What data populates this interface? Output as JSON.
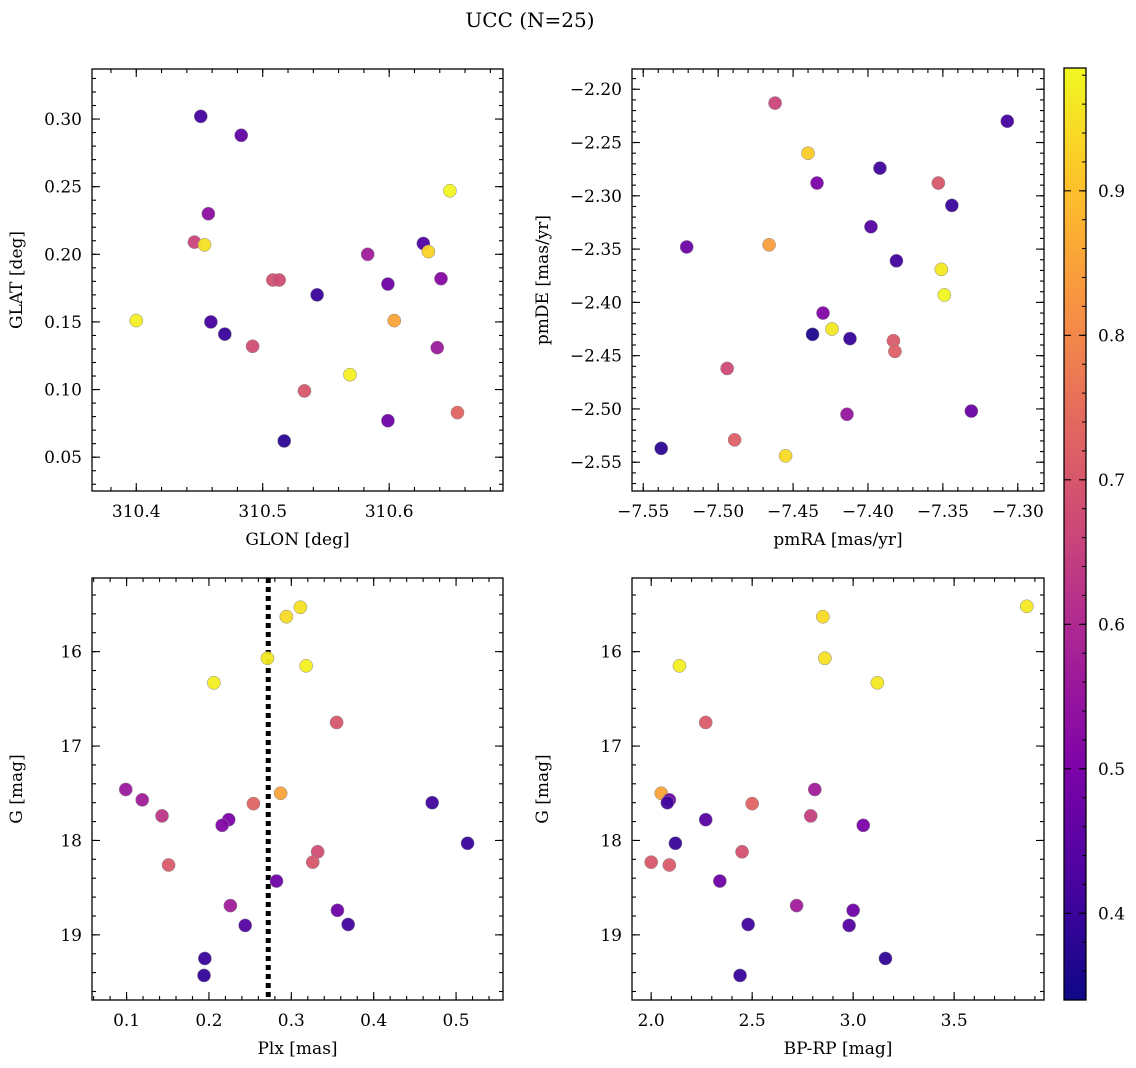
{
  "figure": {
    "title": "UCC (N=25)"
  },
  "colorbar": {
    "range": [
      0.34,
      0.985
    ],
    "ticks": [
      0.4,
      0.5,
      0.6,
      0.7,
      0.8,
      0.9
    ],
    "tick_labels": [
      "0.4",
      "0.5",
      "0.6",
      "0.7",
      "0.8",
      "0.9"
    ],
    "colormap": "plasma"
  },
  "chart_data": [
    {
      "type": "scatter",
      "title": "",
      "xlabel": "GLON [deg]",
      "ylabel": "GLAT [deg]",
      "xlim": [
        310.365,
        310.69
      ],
      "ylim": [
        0.025,
        0.337
      ],
      "xticks": [
        310.4,
        310.5,
        310.6
      ],
      "xtick_labels": [
        "310.4",
        "310.5",
        "310.6"
      ],
      "yticks": [
        0.05,
        0.1,
        0.15,
        0.2,
        0.25,
        0.3
      ],
      "ytick_labels": [
        "0.05",
        "0.10",
        "0.15",
        "0.20",
        "0.25",
        "0.30"
      ],
      "grid": false,
      "points": [
        {
          "x": 310.451,
          "y": 0.302,
          "c": 0.42
        },
        {
          "x": 310.483,
          "y": 0.288,
          "c": 0.46
        },
        {
          "x": 310.457,
          "y": 0.23,
          "c": 0.53
        },
        {
          "x": 310.446,
          "y": 0.209,
          "c": 0.66
        },
        {
          "x": 310.454,
          "y": 0.207,
          "c": 0.95
        },
        {
          "x": 310.4,
          "y": 0.151,
          "c": 0.97
        },
        {
          "x": 310.459,
          "y": 0.15,
          "c": 0.42
        },
        {
          "x": 310.47,
          "y": 0.141,
          "c": 0.4
        },
        {
          "x": 310.492,
          "y": 0.132,
          "c": 0.68
        },
        {
          "x": 310.508,
          "y": 0.181,
          "c": 0.69
        },
        {
          "x": 310.513,
          "y": 0.181,
          "c": 0.68
        },
        {
          "x": 310.543,
          "y": 0.17,
          "c": 0.4
        },
        {
          "x": 310.533,
          "y": 0.099,
          "c": 0.7
        },
        {
          "x": 310.517,
          "y": 0.062,
          "c": 0.38
        },
        {
          "x": 310.569,
          "y": 0.111,
          "c": 0.97
        },
        {
          "x": 310.583,
          "y": 0.2,
          "c": 0.57
        },
        {
          "x": 310.599,
          "y": 0.178,
          "c": 0.48
        },
        {
          "x": 310.599,
          "y": 0.077,
          "c": 0.48
        },
        {
          "x": 310.604,
          "y": 0.151,
          "c": 0.85
        },
        {
          "x": 310.627,
          "y": 0.208,
          "c": 0.43
        },
        {
          "x": 310.631,
          "y": 0.202,
          "c": 0.93
        },
        {
          "x": 310.648,
          "y": 0.247,
          "c": 0.98
        },
        {
          "x": 310.641,
          "y": 0.182,
          "c": 0.52
        },
        {
          "x": 310.638,
          "y": 0.131,
          "c": 0.56
        },
        {
          "x": 310.654,
          "y": 0.083,
          "c": 0.73
        }
      ]
    },
    {
      "type": "scatter",
      "title": "",
      "xlabel": "pmRA [mas/yr]",
      "ylabel": "pmDE [mas/yr]",
      "xlim": [
        -7.5575,
        -7.2825
      ],
      "ylim": [
        -2.577,
        -2.181
      ],
      "xticks": [
        -7.55,
        -7.5,
        -7.45,
        -7.4,
        -7.35,
        -7.3
      ],
      "xtick_labels": [
        "−7.55",
        "−7.50",
        "−7.45",
        "−7.40",
        "−7.35",
        "−7.30"
      ],
      "yticks": [
        -2.55,
        -2.5,
        -2.45,
        -2.4,
        -2.35,
        -2.3,
        -2.25,
        -2.2
      ],
      "ytick_labels": [
        "−2.55",
        "−2.50",
        "−2.45",
        "−2.40",
        "−2.35",
        "−2.30",
        "−2.25",
        "−2.20"
      ],
      "grid": false,
      "points": [
        {
          "x": -7.462,
          "y": -2.213,
          "c": 0.66
        },
        {
          "x": -7.44,
          "y": -2.26,
          "c": 0.92
        },
        {
          "x": -7.434,
          "y": -2.288,
          "c": 0.5
        },
        {
          "x": -7.392,
          "y": -2.274,
          "c": 0.41
        },
        {
          "x": -7.307,
          "y": -2.23,
          "c": 0.42
        },
        {
          "x": -7.353,
          "y": -2.288,
          "c": 0.7
        },
        {
          "x": -7.344,
          "y": -2.309,
          "c": 0.4
        },
        {
          "x": -7.398,
          "y": -2.329,
          "c": 0.44
        },
        {
          "x": -7.521,
          "y": -2.348,
          "c": 0.48
        },
        {
          "x": -7.466,
          "y": -2.346,
          "c": 0.84
        },
        {
          "x": -7.381,
          "y": -2.361,
          "c": 0.41
        },
        {
          "x": -7.351,
          "y": -2.369,
          "c": 0.96
        },
        {
          "x": -7.349,
          "y": -2.393,
          "c": 0.98
        },
        {
          "x": -7.43,
          "y": -2.41,
          "c": 0.51
        },
        {
          "x": -7.424,
          "y": -2.425,
          "c": 0.96
        },
        {
          "x": -7.437,
          "y": -2.43,
          "c": 0.36
        },
        {
          "x": -7.412,
          "y": -2.434,
          "c": 0.4
        },
        {
          "x": -7.383,
          "y": -2.436,
          "c": 0.71
        },
        {
          "x": -7.382,
          "y": -2.446,
          "c": 0.72
        },
        {
          "x": -7.494,
          "y": -2.462,
          "c": 0.67
        },
        {
          "x": -7.414,
          "y": -2.505,
          "c": 0.55
        },
        {
          "x": -7.331,
          "y": -2.502,
          "c": 0.47
        },
        {
          "x": -7.489,
          "y": -2.529,
          "c": 0.72
        },
        {
          "x": -7.455,
          "y": -2.544,
          "c": 0.94
        },
        {
          "x": -7.538,
          "y": -2.537,
          "c": 0.38
        }
      ]
    },
    {
      "type": "scatter",
      "title": "",
      "xlabel": "Plx [mas]",
      "ylabel": "G [mag]",
      "xlim": [
        0.058,
        0.557
      ],
      "ylim": [
        19.69,
        15.22
      ],
      "y_inverted": true,
      "xticks": [
        0.1,
        0.2,
        0.3,
        0.4,
        0.5
      ],
      "xtick_labels": [
        "0.1",
        "0.2",
        "0.3",
        "0.4",
        "0.5"
      ],
      "yticks": [
        16,
        17,
        18,
        19
      ],
      "ytick_labels": [
        "16",
        "17",
        "18",
        "19"
      ],
      "grid": false,
      "vline": {
        "x": 0.272,
        "style": "dotted"
      },
      "points": [
        {
          "x": 0.311,
          "y": 15.53,
          "c": 0.95
        },
        {
          "x": 0.294,
          "y": 15.63,
          "c": 0.94
        },
        {
          "x": 0.271,
          "y": 16.07,
          "c": 0.96
        },
        {
          "x": 0.318,
          "y": 16.15,
          "c": 0.97
        },
        {
          "x": 0.206,
          "y": 16.33,
          "c": 0.97
        },
        {
          "x": 0.355,
          "y": 16.75,
          "c": 0.7
        },
        {
          "x": 0.099,
          "y": 17.46,
          "c": 0.56
        },
        {
          "x": 0.119,
          "y": 17.57,
          "c": 0.57
        },
        {
          "x": 0.143,
          "y": 17.74,
          "c": 0.63
        },
        {
          "x": 0.254,
          "y": 17.61,
          "c": 0.73
        },
        {
          "x": 0.287,
          "y": 17.5,
          "c": 0.85
        },
        {
          "x": 0.471,
          "y": 17.6,
          "c": 0.41
        },
        {
          "x": 0.224,
          "y": 17.78,
          "c": 0.5
        },
        {
          "x": 0.216,
          "y": 17.84,
          "c": 0.51
        },
        {
          "x": 0.514,
          "y": 18.03,
          "c": 0.4
        },
        {
          "x": 0.332,
          "y": 18.12,
          "c": 0.68
        },
        {
          "x": 0.326,
          "y": 18.23,
          "c": 0.7
        },
        {
          "x": 0.151,
          "y": 18.26,
          "c": 0.71
        },
        {
          "x": 0.282,
          "y": 18.43,
          "c": 0.48
        },
        {
          "x": 0.226,
          "y": 18.69,
          "c": 0.57
        },
        {
          "x": 0.356,
          "y": 18.74,
          "c": 0.48
        },
        {
          "x": 0.244,
          "y": 18.9,
          "c": 0.44
        },
        {
          "x": 0.369,
          "y": 18.89,
          "c": 0.41
        },
        {
          "x": 0.195,
          "y": 19.25,
          "c": 0.4
        },
        {
          "x": 0.194,
          "y": 19.43,
          "c": 0.39
        }
      ]
    },
    {
      "type": "scatter",
      "title": "",
      "xlabel": "BP-RP [mag]",
      "ylabel": "G [mag]",
      "xlim": [
        1.905,
        3.945
      ],
      "ylim": [
        19.69,
        15.22
      ],
      "y_inverted": true,
      "xticks": [
        2.0,
        2.5,
        3.0,
        3.5
      ],
      "xtick_labels": [
        "2.0",
        "2.5",
        "3.0",
        "3.5"
      ],
      "yticks": [
        16,
        17,
        18,
        19
      ],
      "ytick_labels": [
        "16",
        "17",
        "18",
        "19"
      ],
      "grid": false,
      "points": [
        {
          "x": 3.86,
          "y": 15.52,
          "c": 0.96
        },
        {
          "x": 2.85,
          "y": 15.63,
          "c": 0.94
        },
        {
          "x": 2.86,
          "y": 16.07,
          "c": 0.95
        },
        {
          "x": 2.14,
          "y": 16.15,
          "c": 0.97
        },
        {
          "x": 3.12,
          "y": 16.33,
          "c": 0.96
        },
        {
          "x": 2.27,
          "y": 16.75,
          "c": 0.71
        },
        {
          "x": 2.05,
          "y": 17.5,
          "c": 0.85
        },
        {
          "x": 2.09,
          "y": 17.57,
          "c": 0.48
        },
        {
          "x": 2.08,
          "y": 17.6,
          "c": 0.41
        },
        {
          "x": 2.5,
          "y": 17.61,
          "c": 0.73
        },
        {
          "x": 2.81,
          "y": 17.46,
          "c": 0.57
        },
        {
          "x": 2.79,
          "y": 17.74,
          "c": 0.65
        },
        {
          "x": 2.27,
          "y": 17.78,
          "c": 0.44
        },
        {
          "x": 3.05,
          "y": 17.84,
          "c": 0.5
        },
        {
          "x": 2.12,
          "y": 18.03,
          "c": 0.4
        },
        {
          "x": 2.45,
          "y": 18.12,
          "c": 0.69
        },
        {
          "x": 2.0,
          "y": 18.23,
          "c": 0.7
        },
        {
          "x": 2.09,
          "y": 18.26,
          "c": 0.71
        },
        {
          "x": 2.34,
          "y": 18.43,
          "c": 0.48
        },
        {
          "x": 2.72,
          "y": 18.69,
          "c": 0.57
        },
        {
          "x": 3.0,
          "y": 18.74,
          "c": 0.48
        },
        {
          "x": 2.48,
          "y": 18.89,
          "c": 0.41
        },
        {
          "x": 2.98,
          "y": 18.9,
          "c": 0.44
        },
        {
          "x": 3.16,
          "y": 19.25,
          "c": 0.39
        },
        {
          "x": 2.44,
          "y": 19.43,
          "c": 0.4
        }
      ]
    }
  ]
}
